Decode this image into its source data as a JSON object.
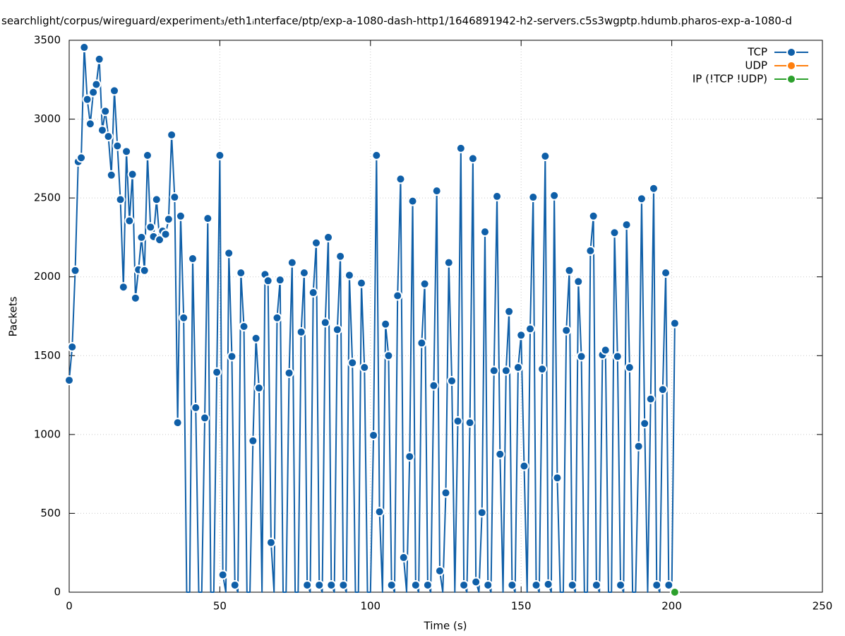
{
  "chart_data": {
    "type": "line",
    "title": "searchlight/corpus/wireguard/experiment₃/eth1ᵢnterface/ptp/exp-a-1080-dash-http1/1646891942-h2-servers.c5s3wgptp.hdumb.pharos-exp-a-1080-d",
    "x_label": "Time (s)",
    "y_label": "Packets",
    "xlim": [
      0,
      250
    ],
    "xticks": [
      0,
      50,
      100,
      150,
      200,
      250
    ],
    "ylim": [
      0,
      3500
    ],
    "yticks": [
      0,
      500,
      1000,
      1500,
      2000,
      2500,
      3000,
      3500
    ],
    "grid": true,
    "legend": "top-right",
    "series": [
      {
        "name": "TCP",
        "color": "#0f5fa8",
        "x": [
          0,
          1,
          2,
          3,
          4,
          5,
          6,
          7,
          8,
          9,
          10,
          11,
          12,
          13,
          14,
          15,
          16,
          17,
          18,
          19,
          20,
          21,
          22,
          23,
          24,
          25,
          26,
          27,
          28,
          29,
          30,
          31,
          32,
          33,
          34,
          35,
          36,
          37,
          38,
          39,
          40,
          41,
          42,
          43,
          44,
          45,
          46,
          47,
          48,
          49,
          50,
          51,
          52,
          53,
          54,
          55,
          56,
          57,
          58,
          59,
          60,
          61,
          62,
          63,
          64,
          65,
          66,
          67,
          68,
          69,
          70,
          71,
          72,
          73,
          74,
          75,
          76,
          77,
          78,
          79,
          80,
          81,
          82,
          83,
          84,
          85,
          86,
          87,
          88,
          89,
          90,
          91,
          92,
          93,
          94,
          95,
          96,
          97,
          98,
          99,
          100,
          101,
          102,
          103,
          104,
          105,
          106,
          107,
          108,
          109,
          110,
          111,
          112,
          113,
          114,
          115,
          116,
          117,
          118,
          119,
          120,
          121,
          122,
          123,
          124,
          125,
          126,
          127,
          128,
          129,
          130,
          131,
          132,
          133,
          134,
          135,
          136,
          137,
          138,
          139,
          140,
          141,
          142,
          143,
          144,
          145,
          146,
          147,
          148,
          149,
          150,
          151,
          152,
          153,
          154,
          155,
          156,
          157,
          158,
          159,
          160,
          161,
          162,
          163,
          164,
          165,
          166,
          167,
          168,
          169,
          170,
          171,
          172,
          173,
          174,
          175,
          176,
          177,
          178,
          179,
          180,
          181,
          182,
          183,
          184,
          185,
          186,
          187,
          188,
          189,
          190,
          191,
          192,
          193,
          194,
          195,
          196,
          197,
          198,
          199,
          200,
          201
        ],
        "values": [
          1344,
          1555,
          2040,
          2730,
          2755,
          3455,
          3125,
          2970,
          3170,
          3220,
          3380,
          2930,
          3050,
          2890,
          2645,
          3180,
          2830,
          2490,
          1935,
          2795,
          2355,
          2650,
          1865,
          2045,
          2250,
          2040,
          2770,
          2315,
          2255,
          2490,
          2235,
          2290,
          2270,
          2365,
          2900,
          2505,
          1075,
          2385,
          1740,
          0,
          0,
          2115,
          1170,
          0,
          0,
          1105,
          2370,
          0,
          0,
          1395,
          2770,
          110,
          0,
          2150,
          1495,
          45,
          0,
          2025,
          1685,
          0,
          0,
          960,
          1610,
          1295,
          0,
          2015,
          1975,
          315,
          0,
          1740,
          1980,
          0,
          0,
          1390,
          2090,
          0,
          0,
          1650,
          2025,
          45,
          0,
          1900,
          2215,
          45,
          0,
          1710,
          2250,
          45,
          0,
          1665,
          2130,
          45,
          0,
          2010,
          1455,
          0,
          0,
          1960,
          1425,
          0,
          0,
          995,
          2770,
          510,
          0,
          1700,
          1500,
          45,
          0,
          1880,
          2620,
          220,
          0,
          860,
          2480,
          45,
          0,
          1580,
          1955,
          45,
          0,
          1310,
          2545,
          135,
          0,
          630,
          2090,
          1340,
          0,
          1085,
          2815,
          45,
          0,
          1075,
          2750,
          65,
          0,
          505,
          2285,
          45,
          0,
          1405,
          2510,
          875,
          0,
          1405,
          1780,
          45,
          0,
          1425,
          1630,
          800,
          0,
          1670,
          2505,
          45,
          0,
          1415,
          2765,
          50,
          0,
          2515,
          725,
          0,
          0,
          1660,
          2040,
          45,
          0,
          1970,
          1495,
          0,
          0,
          2165,
          2385,
          45,
          0,
          1505,
          1535,
          0,
          0,
          2280,
          1495,
          45,
          0,
          2330,
          1425,
          0,
          0,
          925,
          2495,
          1070,
          0,
          1225,
          2560,
          45,
          0,
          1285,
          2025,
          45,
          0,
          1705
        ]
      },
      {
        "name": "UDP",
        "color": "#ff7f0e",
        "x": [],
        "values": []
      },
      {
        "name": "IP (!TCP  !UDP)",
        "color": "#2ca02c",
        "x": [
          201
        ],
        "values": [
          0
        ]
      }
    ]
  }
}
